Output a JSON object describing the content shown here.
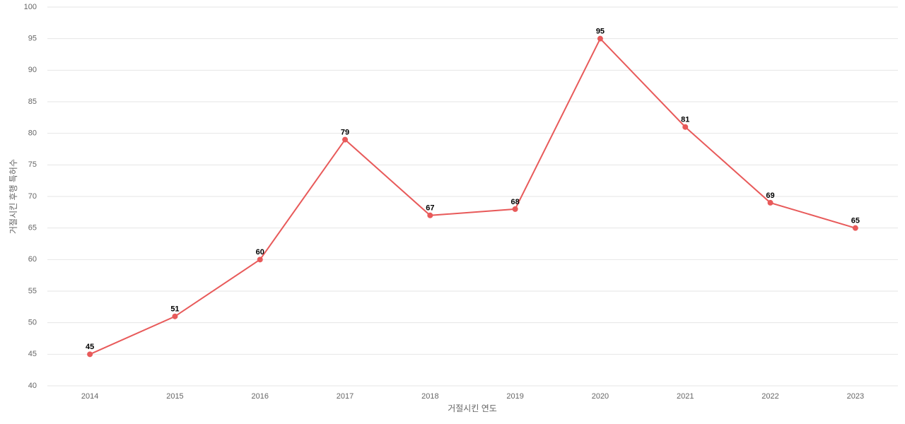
{
  "chart_data": {
    "type": "line",
    "x_label": "거절시킨 연도",
    "y_label": "거절시킨 후행 특허수",
    "categories": [
      "2014",
      "2015",
      "2016",
      "2017",
      "2018",
      "2019",
      "2020",
      "2021",
      "2022",
      "2023"
    ],
    "series": [
      {
        "name": "거절시킨 후행 특허수",
        "color": "#e85a5a",
        "values": [
          45,
          51,
          60,
          79,
          67,
          68,
          95,
          81,
          69,
          65
        ]
      }
    ],
    "ylim": [
      40,
      100
    ],
    "yticks": [
      40,
      45,
      50,
      55,
      60,
      65,
      70,
      75,
      80,
      85,
      90,
      95,
      100
    ],
    "grid": true,
    "data_labels": true
  }
}
